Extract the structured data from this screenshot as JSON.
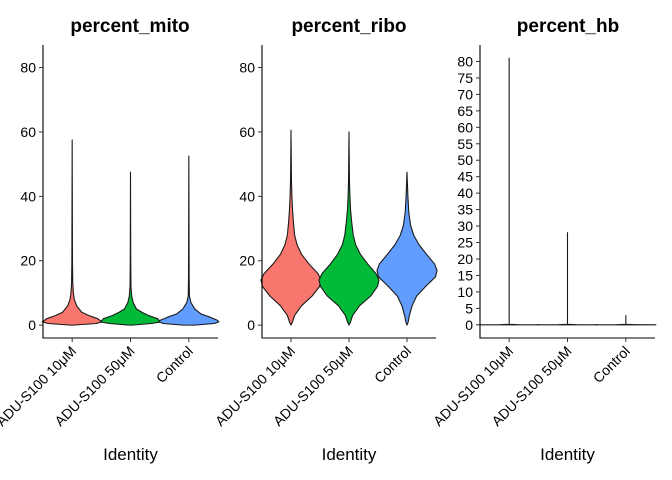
{
  "chart_data": [
    {
      "type": "violin",
      "title": "percent_mito",
      "xlabel": "Identity",
      "ylabel": "",
      "categories": [
        "ADU-S100 10μM",
        "ADU-S100 50μM",
        "Control"
      ],
      "colors": [
        "#F8766D",
        "#00BA38",
        "#619CFF"
      ],
      "ylim": [
        -4,
        87
      ],
      "yticks": [
        0,
        20,
        40,
        60,
        80
      ],
      "series": [
        {
          "category": "ADU-S100 10μM",
          "color": "#F8766D",
          "min": 0,
          "max": 57.5,
          "profile": [
            [
              0,
              0.05
            ],
            [
              0.5,
              0.8
            ],
            [
              1,
              1.0
            ],
            [
              2,
              0.85
            ],
            [
              3,
              0.55
            ],
            [
              4,
              0.32
            ],
            [
              6,
              0.15
            ],
            [
              8,
              0.07
            ],
            [
              10,
              0.04
            ],
            [
              13,
              0.02
            ],
            [
              20,
              0.01
            ],
            [
              57.5,
              0.0
            ]
          ]
        },
        {
          "category": "ADU-S100 50μM",
          "color": "#00BA38",
          "min": 0,
          "max": 47.5,
          "profile": [
            [
              0,
              0.05
            ],
            [
              0.5,
              0.7
            ],
            [
              1,
              1.0
            ],
            [
              2,
              0.9
            ],
            [
              3,
              0.6
            ],
            [
              4,
              0.38
            ],
            [
              5,
              0.2
            ],
            [
              7,
              0.09
            ],
            [
              9,
              0.04
            ],
            [
              12,
              0.015
            ],
            [
              20,
              0.008
            ],
            [
              47.5,
              0.0
            ]
          ]
        },
        {
          "category": "Control",
          "color": "#619CFF",
          "min": 0,
          "max": 52.5,
          "profile": [
            [
              0,
              0.2
            ],
            [
              0.5,
              0.85
            ],
            [
              1,
              1.0
            ],
            [
              1.5,
              0.95
            ],
            [
              2.5,
              0.7
            ],
            [
              3.5,
              0.4
            ],
            [
              5,
              0.2
            ],
            [
              7,
              0.07
            ],
            [
              9,
              0.02
            ],
            [
              15,
              0.01
            ],
            [
              52.5,
              0.0
            ]
          ]
        }
      ]
    },
    {
      "type": "violin",
      "title": "percent_ribo",
      "xlabel": "Identity",
      "ylabel": "",
      "categories": [
        "ADU-S100 10μM",
        "ADU-S100 50μM",
        "Control"
      ],
      "colors": [
        "#F8766D",
        "#00BA38",
        "#619CFF"
      ],
      "ylim": [
        -4,
        87
      ],
      "yticks": [
        0,
        20,
        40,
        60,
        80
      ],
      "series": [
        {
          "category": "ADU-S100 10μM",
          "color": "#F8766D",
          "min": 0,
          "max": 60.5,
          "profile": [
            [
              0,
              0.0
            ],
            [
              1,
              0.05
            ],
            [
              3,
              0.12
            ],
            [
              6,
              0.35
            ],
            [
              9,
              0.7
            ],
            [
              12,
              0.95
            ],
            [
              14,
              1.0
            ],
            [
              16,
              0.9
            ],
            [
              19,
              0.6
            ],
            [
              22,
              0.35
            ],
            [
              25,
              0.2
            ],
            [
              28,
              0.12
            ],
            [
              32,
              0.08
            ],
            [
              36,
              0.05
            ],
            [
              40,
              0.03
            ],
            [
              45,
              0.015
            ],
            [
              60.5,
              0.0
            ]
          ]
        },
        {
          "category": "ADU-S100 50μM",
          "color": "#00BA38",
          "min": 0,
          "max": 60,
          "profile": [
            [
              0,
              0.0
            ],
            [
              1,
              0.05
            ],
            [
              3,
              0.12
            ],
            [
              6,
              0.35
            ],
            [
              9,
              0.72
            ],
            [
              12,
              0.95
            ],
            [
              14,
              1.0
            ],
            [
              16,
              0.9
            ],
            [
              19,
              0.62
            ],
            [
              22,
              0.38
            ],
            [
              25,
              0.22
            ],
            [
              28,
              0.14
            ],
            [
              32,
              0.09
            ],
            [
              36,
              0.05
            ],
            [
              40,
              0.03
            ],
            [
              45,
              0.015
            ],
            [
              60,
              0.0
            ]
          ]
        },
        {
          "category": "Control",
          "color": "#619CFF",
          "min": 0,
          "max": 47.5,
          "profile": [
            [
              0,
              0.0
            ],
            [
              1,
              0.04
            ],
            [
              3,
              0.08
            ],
            [
              6,
              0.17
            ],
            [
              9,
              0.32
            ],
            [
              12,
              0.62
            ],
            [
              15,
              0.95
            ],
            [
              17,
              1.0
            ],
            [
              19,
              0.92
            ],
            [
              22,
              0.65
            ],
            [
              25,
              0.4
            ],
            [
              28,
              0.22
            ],
            [
              31,
              0.12
            ],
            [
              35,
              0.06
            ],
            [
              40,
              0.03
            ],
            [
              47.5,
              0.0
            ]
          ]
        }
      ]
    },
    {
      "type": "violin",
      "title": "percent_hb",
      "xlabel": "Identity",
      "ylabel": "",
      "categories": [
        "ADU-S100 10μM",
        "ADU-S100 50μM",
        "Control"
      ],
      "colors": [
        "#F8766D",
        "#00BA38",
        "#619CFF"
      ],
      "ylim": [
        -4,
        85
      ],
      "yticks": [
        0,
        5,
        10,
        15,
        20,
        25,
        30,
        35,
        40,
        45,
        50,
        55,
        60,
        65,
        70,
        75,
        80
      ],
      "series": [
        {
          "category": "ADU-S100 10μM",
          "color": "#F8766D",
          "min": 0,
          "max": 81,
          "profile": [
            [
              0,
              1.0
            ],
            [
              0.05,
              0.3
            ],
            [
              0.15,
              0.0
            ],
            [
              81,
              0.0
            ]
          ]
        },
        {
          "category": "ADU-S100 50μM",
          "color": "#00BA38",
          "min": 0,
          "max": 28,
          "profile": [
            [
              0,
              1.0
            ],
            [
              0.05,
              0.3
            ],
            [
              0.15,
              0.0
            ],
            [
              28,
              0.0
            ]
          ]
        },
        {
          "category": "Control",
          "color": "#619CFF",
          "min": 0,
          "max": 2.8,
          "profile": [
            [
              0,
              1.0
            ],
            [
              0.05,
              0.3
            ],
            [
              0.15,
              0.0
            ],
            [
              2.8,
              0.0
            ]
          ]
        }
      ]
    }
  ]
}
